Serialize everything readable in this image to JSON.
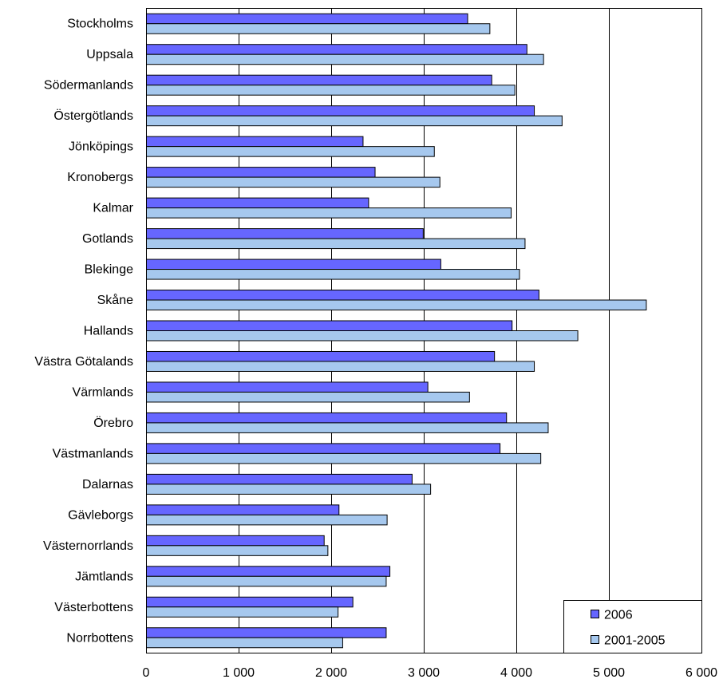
{
  "chart_data": {
    "type": "bar",
    "orientation": "horizontal",
    "categories": [
      "Stockholms",
      "Uppsala",
      "Södermanlands",
      "Östergötlands",
      "Jönköpings",
      "Kronobergs",
      "Kalmar",
      "Gotlands",
      "Blekinge",
      "Skåne",
      "Hallands",
      "Västra Götalands",
      "Värmlands",
      "Örebro",
      "Västmanlands",
      "Dalarnas",
      "Gävleborgs",
      "Västernorrlands",
      "Jämtlands",
      "Västerbottens",
      "Norrbottens"
    ],
    "series": [
      {
        "name": "2006",
        "color": "#6666ff",
        "values": [
          3470,
          4110,
          3730,
          4190,
          2340,
          2470,
          2400,
          2990,
          3180,
          4240,
          3950,
          3760,
          3040,
          3890,
          3820,
          2870,
          2080,
          1920,
          2630,
          2230,
          2590
        ]
      },
      {
        "name": "2001-2005",
        "color": "#a6c8ee",
        "values": [
          3710,
          4290,
          3980,
          4490,
          3110,
          3170,
          3940,
          4090,
          4030,
          5400,
          4660,
          4190,
          3490,
          4340,
          4260,
          3070,
          2600,
          1960,
          2590,
          2070,
          2120
        ]
      }
    ],
    "xlim": [
      0,
      6000
    ],
    "xticks": [
      0,
      1000,
      2000,
      3000,
      4000,
      5000,
      6000
    ],
    "xtick_labels": [
      "0",
      "1 000",
      "2 000",
      "3 000",
      "4 000",
      "5 000",
      "6 000"
    ],
    "gridlines": "vertical major",
    "legend": {
      "position": "bottom-right",
      "entries": [
        "2006",
        "2001-2005"
      ]
    },
    "title": "",
    "xlabel": "",
    "ylabel": ""
  }
}
